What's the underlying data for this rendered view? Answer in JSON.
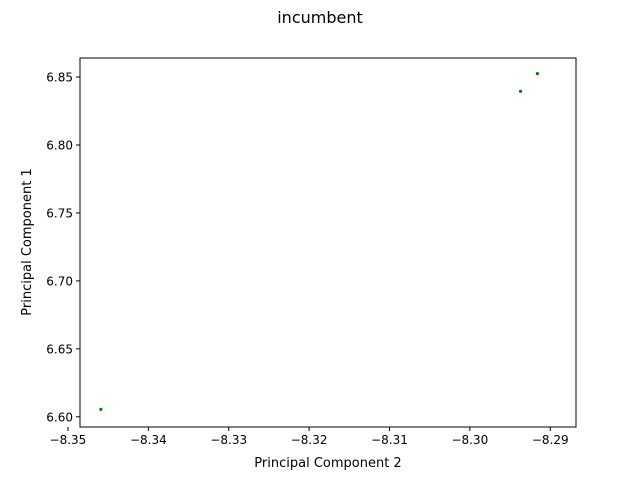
{
  "chart_data": {
    "type": "scatter",
    "title": "incumbent",
    "xlabel": "Principal Component 2",
    "ylabel": "Principal Component 1",
    "xlim": [
      -8.3485,
      -8.2868
    ],
    "ylim": [
      6.5925,
      6.864
    ],
    "xticks": [
      -8.35,
      -8.34,
      -8.33,
      -8.32,
      -8.31,
      -8.3,
      -8.29
    ],
    "xtick_labels": [
      "−8.35",
      "−8.34",
      "−8.33",
      "−8.32",
      "−8.31",
      "−8.30",
      "−8.29"
    ],
    "yticks": [
      6.6,
      6.65,
      6.7,
      6.75,
      6.8,
      6.85
    ],
    "ytick_labels": [
      "6.60",
      "6.65",
      "6.70",
      "6.75",
      "6.80",
      "6.85"
    ],
    "grid": false,
    "point_color": "#008000",
    "points": [
      {
        "x": -8.2916,
        "y": 6.8525
      },
      {
        "x": -8.2937,
        "y": 6.8395
      },
      {
        "x": -8.3459,
        "y": 6.6055
      }
    ]
  }
}
